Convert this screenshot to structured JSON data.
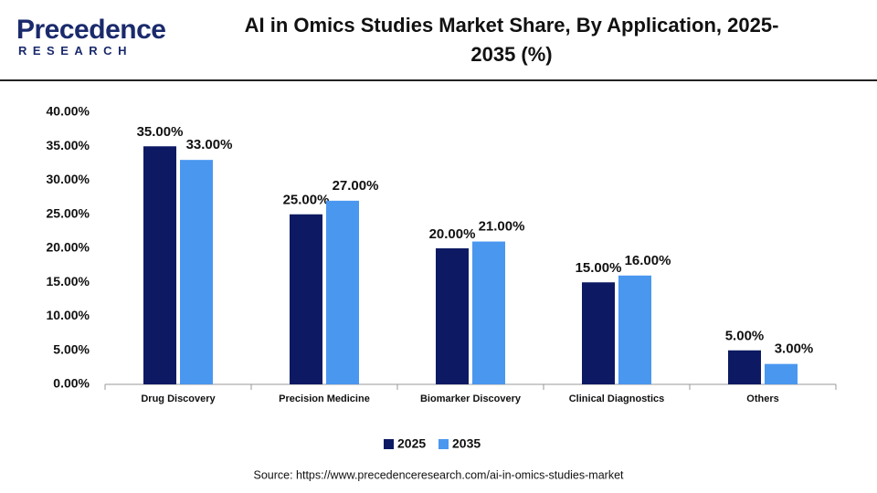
{
  "logo": {
    "name": "Precedence",
    "tagline": "RESEARCH"
  },
  "chart_data": {
    "type": "bar",
    "title": "AI in Omics Studies Market Share, By Application, 2025-2035 (%)",
    "categories": [
      "Drug Discovery",
      "Precision Medicine",
      "Biomarker Discovery",
      "Clinical Diagnostics",
      "Others"
    ],
    "series": [
      {
        "name": "2025",
        "color": "#0d1a63",
        "values": [
          35,
          25,
          20,
          15,
          5
        ],
        "value_labels": [
          "35.00%",
          "25.00%",
          "20.00%",
          "15.00%",
          "5.00%"
        ]
      },
      {
        "name": "2035",
        "color": "#4a97f0",
        "values": [
          33,
          27,
          21,
          16,
          3
        ],
        "value_labels": [
          "33.00%",
          "27.00%",
          "21.00%",
          "16.00%",
          "3.00%"
        ]
      }
    ],
    "ylim": [
      0,
      40
    ],
    "yticks": [
      {
        "value": 0,
        "label": "0.00%"
      },
      {
        "value": 5,
        "label": "5.00%"
      },
      {
        "value": 10,
        "label": "10.00%"
      },
      {
        "value": 15,
        "label": "15.00%"
      },
      {
        "value": 20,
        "label": "20.00%"
      },
      {
        "value": 25,
        "label": "25.00%"
      },
      {
        "value": 30,
        "label": "30.00%"
      },
      {
        "value": 35,
        "label": "35.00%"
      },
      {
        "value": 40,
        "label": "40.00%"
      }
    ],
    "grid": false,
    "legend": "bottom",
    "source": "Source: https://www.precedenceresearch.com/ai-in-omics-studies-market"
  }
}
